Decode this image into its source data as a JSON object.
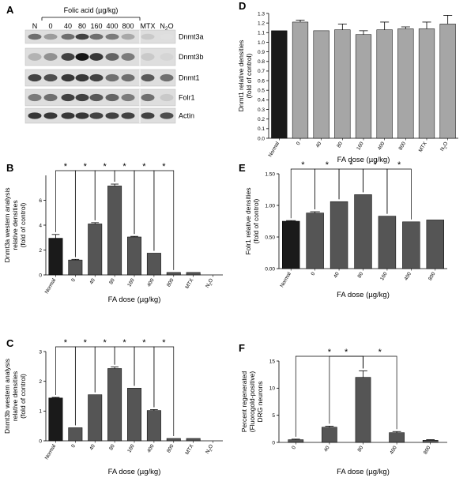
{
  "blot": {
    "panel_label": "A",
    "header": "Folic acid (µg/kg)",
    "lanes": [
      "N",
      "0",
      "40",
      "80",
      "160",
      "400",
      "800",
      "MTX",
      "N2O"
    ],
    "proteins": [
      "Dnmt3a",
      "Dnmt3b",
      "Dnmt1",
      "Folr1",
      "Actin"
    ]
  },
  "chart_data": [
    {
      "panel": "B",
      "type": "bar",
      "categories": [
        "Normal",
        "0",
        "40",
        "80",
        "160",
        "400",
        "800",
        "MTX",
        "N2O"
      ],
      "values": [
        2.95,
        1.2,
        4.1,
        7.15,
        3.05,
        1.75,
        0.2,
        0.2,
        0.0
      ],
      "errors": [
        0.3,
        0.05,
        0.1,
        0.15,
        0.05,
        0.0,
        0.0,
        0.0,
        0.0
      ],
      "colors": [
        "#1a1a1a",
        "#555555",
        "#555555",
        "#555555",
        "#555555",
        "#555555",
        "#555555",
        "#555555",
        "#555555"
      ],
      "ylim": [
        0,
        8
      ],
      "yticks": [
        0,
        2,
        4,
        6
      ],
      "xlabel": "FA dose (µg/kg)",
      "ylabel": [
        "Dnmt3a western analysis",
        "relative densities",
        "(fold of control)"
      ],
      "brackets": [
        [
          0,
          1
        ],
        [
          1,
          2
        ],
        [
          2,
          3
        ],
        [
          3,
          4
        ],
        [
          4,
          5
        ],
        [
          5,
          6
        ]
      ],
      "significance": "*"
    },
    {
      "panel": "C",
      "type": "bar",
      "categories": [
        "Normal",
        "0",
        "40",
        "80",
        "160",
        "400",
        "800",
        "MTX",
        "N2O"
      ],
      "values": [
        1.44,
        0.44,
        1.55,
        2.43,
        1.77,
        1.02,
        0.08,
        0.08,
        0.0
      ],
      "errors": [
        0.02,
        0.0,
        0.0,
        0.05,
        0.0,
        0.03,
        0.0,
        0.0,
        0.0
      ],
      "colors": [
        "#1a1a1a",
        "#555555",
        "#555555",
        "#555555",
        "#555555",
        "#555555",
        "#555555",
        "#555555",
        "#555555"
      ],
      "ylim": [
        0,
        3
      ],
      "yticks": [
        0,
        1,
        2,
        3
      ],
      "xlabel": "FA dose (µg/kg)",
      "ylabel": [
        "Dnmt3b western analysis",
        "relative densities",
        "(fold of control)"
      ],
      "brackets": [
        [
          0,
          1
        ],
        [
          1,
          2
        ],
        [
          2,
          3
        ],
        [
          3,
          4
        ],
        [
          4,
          5
        ],
        [
          5,
          6
        ]
      ],
      "significance": "*"
    },
    {
      "panel": "D",
      "type": "bar",
      "categories": [
        "Normal",
        "0",
        "40",
        "80",
        "160",
        "400",
        "800",
        "MTX",
        "N2O"
      ],
      "values": [
        1.12,
        1.21,
        1.12,
        1.13,
        1.08,
        1.13,
        1.14,
        1.14,
        1.19
      ],
      "errors": [
        0.0,
        0.02,
        0.0,
        0.06,
        0.04,
        0.08,
        0.02,
        0.07,
        0.09
      ],
      "colors": [
        "#1a1a1a",
        "#a6a6a6",
        "#a6a6a6",
        "#a6a6a6",
        "#a6a6a6",
        "#a6a6a6",
        "#a6a6a6",
        "#a6a6a6",
        "#a6a6a6"
      ],
      "ylim": [
        0,
        1.3
      ],
      "yticks": [
        0.0,
        0.1,
        0.2,
        0.3,
        0.4,
        0.5,
        0.6,
        0.7,
        0.8,
        0.9,
        1.0,
        1.1,
        1.2,
        1.3
      ],
      "ytick_labels": [
        "0.0",
        "0.1",
        "0.2",
        "0.3",
        "0.4",
        "0.5",
        "0.6",
        "0.7",
        "0.8",
        "0.9",
        "1.0",
        "1.1",
        "1.2",
        "1.3"
      ],
      "xlabel": "FA dose (µg/kg)",
      "ylabel": [
        "Dnmt1 relative densities",
        "(fold of control)"
      ],
      "brackets": [],
      "significance": "*"
    },
    {
      "panel": "E",
      "type": "bar",
      "categories": [
        "Normal",
        "0",
        "40",
        "80",
        "160",
        "400",
        "800"
      ],
      "values": [
        0.75,
        0.88,
        1.06,
        1.17,
        0.83,
        0.74,
        0.77
      ],
      "errors": [
        0.01,
        0.02,
        0.0,
        0.0,
        0.0,
        0.0,
        0.0
      ],
      "colors": [
        "#1a1a1a",
        "#555555",
        "#555555",
        "#555555",
        "#555555",
        "#555555",
        "#555555"
      ],
      "ylim": [
        0,
        1.5
      ],
      "yticks": [
        0.0,
        0.5,
        1.0,
        1.5
      ],
      "ytick_labels": [
        "0.00",
        "0.50",
        "1.00",
        "1.50"
      ],
      "xlabel": "FA dose (µg/kg)",
      "ylabel": [
        "Folr1 relative densities",
        "(fold of control)"
      ],
      "brackets": [
        [
          0,
          1
        ],
        [
          1,
          2
        ],
        [
          2,
          3
        ],
        [
          3,
          4
        ],
        [
          4,
          5
        ]
      ],
      "significance": "*"
    },
    {
      "panel": "F",
      "type": "bar",
      "categories": [
        "0",
        "40",
        "80",
        "400",
        "800"
      ],
      "values": [
        0.5,
        2.8,
        12.0,
        1.8,
        0.4
      ],
      "errors": [
        0.1,
        0.2,
        1.2,
        0.2,
        0.1
      ],
      "colors": [
        "#555555",
        "#555555",
        "#555555",
        "#555555",
        "#555555"
      ],
      "ylim": [
        0,
        15
      ],
      "yticks": [
        0,
        5,
        10,
        15
      ],
      "xlabel": "FA dose (µg/kg)",
      "ylabel": [
        "Percent regenerated",
        "(Fluorogold-positive)",
        "DRG neurons"
      ],
      "brackets": [
        [
          0,
          2
        ],
        [
          1,
          2
        ],
        [
          2,
          3
        ]
      ],
      "significance": "*"
    }
  ]
}
